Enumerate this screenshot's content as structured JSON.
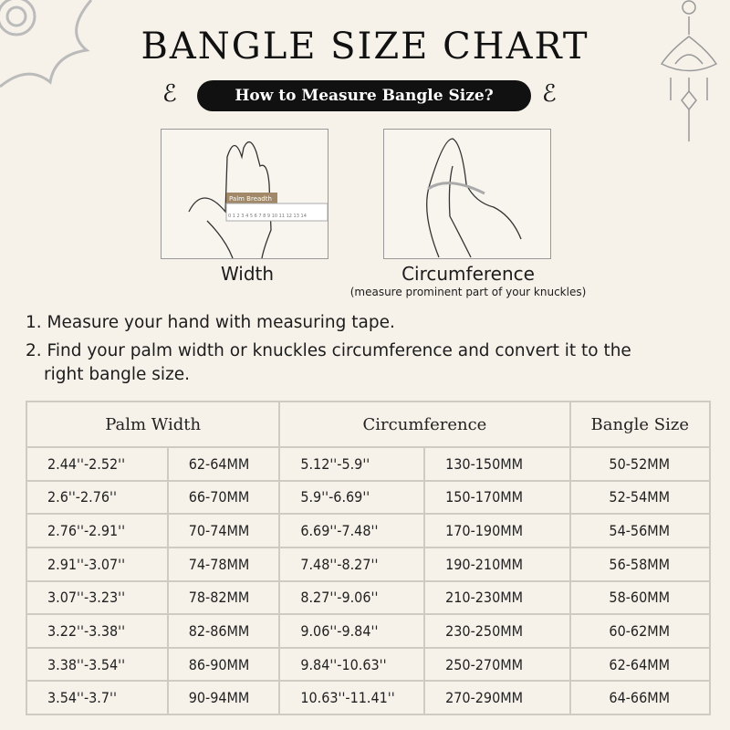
{
  "header": {
    "title": "BANGLE SIZE CHART",
    "subtitle": "How to Measure Bangle Size?"
  },
  "illustrations": [
    {
      "caption": "Width",
      "ruler_label": "Palm Breadth",
      "ruler_ticks": "0 1 2 3 4 5 6 7 8 9 10 11 12 13 14"
    },
    {
      "caption": "Circumference",
      "note": "(measure prominent part of your knuckles)"
    }
  ],
  "steps": [
    "1. Measure your hand with measuring tape.",
    "2. Find your palm width or knuckles circumference and convert it to the",
    "right bangle size."
  ],
  "table": {
    "headers": [
      "Palm Width",
      "Circumference",
      "Bangle Size"
    ],
    "rows": [
      [
        "2.44''-2.52''",
        "62-64MM",
        "5.12''-5.9''",
        "130-150MM",
        "50-52MM"
      ],
      [
        "2.6''-2.76''",
        "66-70MM",
        "5.9''-6.69''",
        "150-170MM",
        "52-54MM"
      ],
      [
        "2.76''-2.91''",
        "70-74MM",
        "6.69''-7.48''",
        "170-190MM",
        "54-56MM"
      ],
      [
        "2.91''-3.07''",
        "74-78MM",
        "7.48''-8.27''",
        "190-210MM",
        "56-58MM"
      ],
      [
        "3.07''-3.23''",
        "78-82MM",
        "8.27''-9.06''",
        "210-230MM",
        "58-60MM"
      ],
      [
        "3.22''-3.38''",
        "82-86MM",
        "9.06''-9.84''",
        "230-250MM",
        "60-62MM"
      ],
      [
        "3.38''-3.54''",
        "86-90MM",
        "9.84''-10.63''",
        "250-270MM",
        "62-64MM"
      ],
      [
        "3.54''-3.7''",
        "90-94MM",
        "10.63''-11.41''",
        "270-290MM",
        "64-66MM"
      ]
    ]
  }
}
